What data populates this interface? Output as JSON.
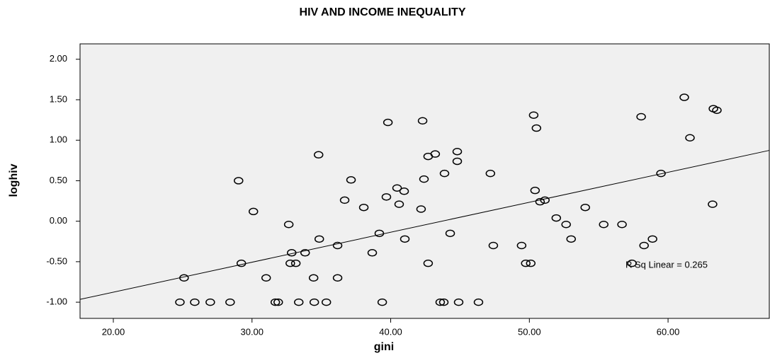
{
  "chart_data": {
    "type": "scatter",
    "title": "HIV AND INCOME INEQUALITY",
    "x_label": "gini",
    "y_label": "loghiv",
    "xlim": [
      17.6,
      67.3
    ],
    "ylim": [
      -1.2,
      2.19
    ],
    "xticks": [
      {
        "value": 20,
        "label": "20.00"
      },
      {
        "value": 30,
        "label": "30.00"
      },
      {
        "value": 40,
        "label": "40.00"
      },
      {
        "value": 50,
        "label": "50.00"
      },
      {
        "value": 60,
        "label": "60.00"
      }
    ],
    "yticks": [
      {
        "value": -1,
        "label": "-1.00"
      },
      {
        "value": -0.5,
        "label": "-0.50"
      },
      {
        "value": 0,
        "label": "0.00"
      },
      {
        "value": 0.5,
        "label": "0.50"
      },
      {
        "value": 1,
        "label": "1.00"
      },
      {
        "value": 1.5,
        "label": "1.50"
      },
      {
        "value": 2,
        "label": "2.00"
      }
    ],
    "x": [
      24.8,
      25.1,
      25.87,
      26.99,
      28.42,
      29.03,
      29.23,
      30.1,
      31.02,
      31.68,
      31.89,
      32.65,
      32.76,
      32.86,
      33.16,
      33.37,
      33.83,
      34.44,
      34.49,
      34.8,
      34.85,
      35.36,
      36.17,
      36.17,
      36.68,
      37.14,
      38.06,
      38.67,
      39.18,
      39.39,
      39.69,
      39.8,
      40.46,
      40.61,
      40.97,
      41.02,
      42.19,
      42.3,
      42.4,
      42.7,
      42.7,
      43.21,
      43.57,
      43.83,
      43.88,
      44.29,
      44.8,
      44.8,
      44.9,
      46.33,
      47.19,
      47.4,
      49.44,
      49.74,
      50.1,
      50.31,
      50.41,
      50.51,
      50.77,
      51.12,
      51.94,
      52.65,
      53.01,
      54.03,
      55.36,
      56.68,
      57.4,
      58.06,
      58.27,
      58.88,
      59.49,
      61.17,
      61.58,
      63.21,
      63.27,
      63.52
    ],
    "y": [
      -1.0,
      -0.7,
      -1.0,
      -1.0,
      -1.0,
      0.5,
      -0.52,
      0.12,
      -0.7,
      -1.0,
      -1.0,
      -0.04,
      -0.52,
      -0.39,
      -0.52,
      -1.0,
      -0.39,
      -0.7,
      -1.0,
      0.82,
      -0.22,
      -1.0,
      -0.3,
      -0.7,
      0.26,
      0.51,
      0.17,
      -0.39,
      -0.15,
      -1.0,
      0.3,
      1.22,
      0.41,
      0.21,
      0.37,
      -0.22,
      0.15,
      1.24,
      0.52,
      0.8,
      -0.52,
      0.83,
      -1.0,
      -1.0,
      0.59,
      -0.15,
      0.86,
      0.74,
      -1.0,
      -1.0,
      0.59,
      -0.3,
      -0.3,
      -0.52,
      -0.52,
      1.31,
      0.38,
      1.15,
      0.24,
      0.26,
      0.04,
      -0.04,
      -0.22,
      0.17,
      -0.04,
      -0.04,
      -0.52,
      1.29,
      -0.3,
      -0.22,
      0.59,
      1.53,
      1.03,
      0.21,
      1.39,
      1.37
    ],
    "color": "#000000",
    "fit_line": {
      "slope": 0.03702,
      "intercept": -1.617
    },
    "annotation": "R Sq Linear = 0.265"
  }
}
